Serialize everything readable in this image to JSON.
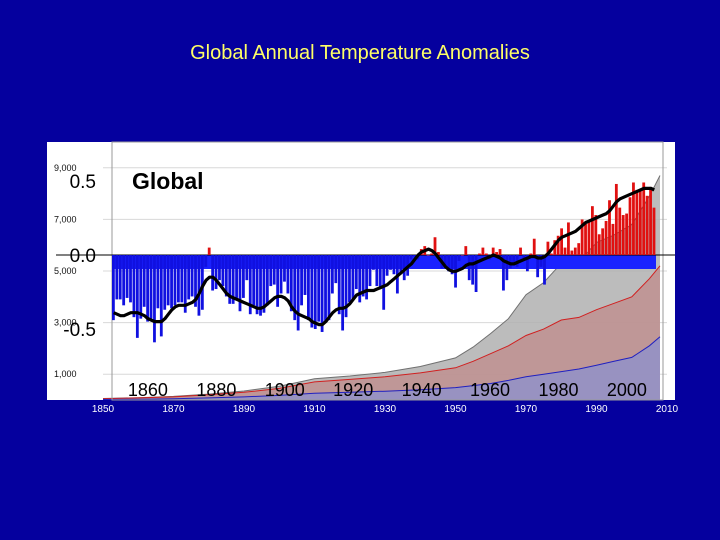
{
  "slide": {
    "title": "Global Annual Temperature Anomalies"
  },
  "chart_data": [
    {
      "type": "bar",
      "title": "Global",
      "overlay_line": "smoothed",
      "ytick_labels": [
        "0.5",
        "0.0",
        "-0.5"
      ],
      "ytick_values": [
        0.5,
        0.0,
        -0.5
      ],
      "xtick_labels": [
        "1860",
        "1880",
        "1900",
        "1920",
        "1940",
        "1960",
        "1980",
        "2000"
      ],
      "ylim": [
        -1.0,
        0.6
      ],
      "colors": {
        "positive": "#e01010",
        "negative": "#1010e0",
        "smooth_line": "#000000",
        "zero_band": "#1a22ff"
      },
      "years": [
        1850,
        1851,
        1852,
        1853,
        1854,
        1855,
        1856,
        1857,
        1858,
        1859,
        1860,
        1861,
        1862,
        1863,
        1864,
        1865,
        1866,
        1867,
        1868,
        1869,
        1870,
        1871,
        1872,
        1873,
        1874,
        1875,
        1876,
        1877,
        1878,
        1879,
        1880,
        1881,
        1882,
        1883,
        1884,
        1885,
        1886,
        1887,
        1888,
        1889,
        1890,
        1891,
        1892,
        1893,
        1894,
        1895,
        1896,
        1897,
        1898,
        1899,
        1900,
        1901,
        1902,
        1903,
        1904,
        1905,
        1906,
        1907,
        1908,
        1909,
        1910,
        1911,
        1912,
        1913,
        1914,
        1915,
        1916,
        1917,
        1918,
        1919,
        1920,
        1921,
        1922,
        1923,
        1924,
        1925,
        1926,
        1927,
        1928,
        1929,
        1930,
        1931,
        1932,
        1933,
        1934,
        1935,
        1936,
        1937,
        1938,
        1939,
        1940,
        1941,
        1942,
        1943,
        1944,
        1945,
        1946,
        1947,
        1948,
        1949,
        1950,
        1951,
        1952,
        1953,
        1954,
        1955,
        1956,
        1957,
        1958,
        1959,
        1960,
        1961,
        1962,
        1963,
        1964,
        1965,
        1966,
        1967,
        1968,
        1969,
        1970,
        1971,
        1972,
        1973,
        1974,
        1975,
        1976,
        1977,
        1978,
        1979,
        1980,
        1981,
        1982,
        1983,
        1984,
        1985,
        1986,
        1987,
        1988,
        1989,
        1990,
        1991,
        1992,
        1993,
        1994,
        1995,
        1996,
        1997,
        1998,
        1999,
        2000,
        2001,
        2002,
        2003,
        2004,
        2005,
        2006,
        2007,
        2008
      ],
      "anomalies": [
        -0.44,
        -0.3,
        -0.3,
        -0.34,
        -0.29,
        -0.32,
        -0.42,
        -0.56,
        -0.43,
        -0.35,
        -0.45,
        -0.43,
        -0.59,
        -0.36,
        -0.55,
        -0.37,
        -0.34,
        -0.36,
        -0.34,
        -0.32,
        -0.32,
        -0.39,
        -0.3,
        -0.28,
        -0.35,
        -0.41,
        -0.37,
        -0.08,
        0.05,
        -0.24,
        -0.23,
        -0.17,
        -0.21,
        -0.28,
        -0.33,
        -0.33,
        -0.29,
        -0.38,
        -0.29,
        -0.17,
        -0.4,
        -0.34,
        -0.4,
        -0.41,
        -0.39,
        -0.34,
        -0.21,
        -0.2,
        -0.35,
        -0.26,
        -0.18,
        -0.26,
        -0.38,
        -0.44,
        -0.51,
        -0.34,
        -0.27,
        -0.44,
        -0.49,
        -0.5,
        -0.45,
        -0.52,
        -0.45,
        -0.44,
        -0.26,
        -0.19,
        -0.4,
        -0.51,
        -0.42,
        -0.32,
        -0.3,
        -0.23,
        -0.32,
        -0.28,
        -0.3,
        -0.21,
        -0.1,
        -0.21,
        -0.22,
        -0.37,
        -0.14,
        -0.1,
        -0.13,
        -0.26,
        -0.13,
        -0.17,
        -0.14,
        -0.03,
        -0.01,
        -0.03,
        0.04,
        0.06,
        0.0,
        0.01,
        0.12,
        0.02,
        -0.09,
        -0.09,
        -0.11,
        -0.13,
        -0.22,
        -0.04,
        0.0,
        0.06,
        -0.17,
        -0.2,
        -0.25,
        0.01,
        0.05,
        0.01,
        -0.03,
        0.05,
        0.02,
        0.04,
        -0.24,
        -0.17,
        -0.09,
        -0.05,
        -0.08,
        0.05,
        -0.02,
        -0.11,
        0.01,
        0.11,
        -0.15,
        -0.08,
        -0.2,
        0.09,
        0.01,
        0.1,
        0.13,
        0.18,
        0.05,
        0.22,
        0.03,
        0.05,
        0.08,
        0.24,
        0.21,
        0.23,
        0.33,
        0.27,
        0.14,
        0.18,
        0.23,
        0.37,
        0.21,
        0.48,
        0.32,
        0.27,
        0.28,
        0.39,
        0.49,
        0.44,
        0.44,
        0.49,
        0.4,
        0.46,
        0.32
      ],
      "smoothed": [
        -0.39,
        -0.4,
        -0.41,
        -0.41,
        -0.4,
        -0.39,
        -0.39,
        -0.39,
        -0.4,
        -0.41,
        -0.43,
        -0.44,
        -0.45,
        -0.45,
        -0.45,
        -0.43,
        -0.4,
        -0.37,
        -0.35,
        -0.34,
        -0.34,
        -0.34,
        -0.33,
        -0.32,
        -0.3,
        -0.26,
        -0.21,
        -0.17,
        -0.15,
        -0.15,
        -0.17,
        -0.2,
        -0.23,
        -0.26,
        -0.28,
        -0.29,
        -0.3,
        -0.31,
        -0.32,
        -0.33,
        -0.34,
        -0.35,
        -0.36,
        -0.36,
        -0.35,
        -0.33,
        -0.31,
        -0.29,
        -0.28,
        -0.28,
        -0.29,
        -0.31,
        -0.35,
        -0.38,
        -0.4,
        -0.41,
        -0.42,
        -0.43,
        -0.45,
        -0.46,
        -0.47,
        -0.47,
        -0.45,
        -0.42,
        -0.39,
        -0.37,
        -0.36,
        -0.36,
        -0.35,
        -0.33,
        -0.3,
        -0.27,
        -0.26,
        -0.25,
        -0.24,
        -0.24,
        -0.24,
        -0.23,
        -0.22,
        -0.21,
        -0.2,
        -0.18,
        -0.16,
        -0.14,
        -0.12,
        -0.1,
        -0.08,
        -0.06,
        -0.03,
        0.0,
        0.02,
        0.03,
        0.04,
        0.03,
        0.01,
        -0.02,
        -0.05,
        -0.08,
        -0.1,
        -0.11,
        -0.11,
        -0.1,
        -0.09,
        -0.07,
        -0.06,
        -0.06,
        -0.05,
        -0.04,
        -0.03,
        -0.02,
        -0.01,
        0.0,
        -0.01,
        -0.02,
        -0.04,
        -0.05,
        -0.06,
        -0.06,
        -0.05,
        -0.04,
        -0.03,
        -0.02,
        -0.01,
        -0.01,
        -0.02,
        -0.02,
        -0.01,
        0.01,
        0.04,
        0.07,
        0.1,
        0.12,
        0.13,
        0.14,
        0.15,
        0.16,
        0.18,
        0.2,
        0.22,
        0.23,
        0.24,
        0.25,
        0.26,
        0.27,
        0.28,
        0.3,
        0.33,
        0.36,
        0.38,
        0.39,
        0.4,
        0.41,
        0.42,
        0.43,
        0.44,
        0.45,
        0.45,
        0.45,
        0.44
      ]
    },
    {
      "type": "area",
      "ytick_labels": [
        "9,000",
        "7,000",
        "5,000",
        "3,000",
        "1,000"
      ],
      "ytick_values": [
        9000,
        7000,
        5000,
        3000,
        1000
      ],
      "xtick_labels": [
        "1850",
        "1870",
        "1890",
        "1910",
        "1930",
        "1950",
        "1970",
        "1990",
        "2010"
      ],
      "xlim": [
        1850,
        2010
      ],
      "ylim": [
        0,
        10000
      ],
      "years": [
        1850,
        1860,
        1870,
        1880,
        1890,
        1900,
        1910,
        1920,
        1930,
        1940,
        1950,
        1955,
        1960,
        1965,
        1970,
        1975,
        1980,
        1985,
        1990,
        1995,
        2000,
        2005,
        2008
      ],
      "series": [
        {
          "color": "#b0b0b0",
          "values": [
            60,
            90,
            140,
            230,
            350,
            530,
            820,
            930,
            1070,
            1300,
            1630,
            2050,
            2580,
            3150,
            4080,
            4550,
            5300,
            5350,
            6100,
            6400,
            6800,
            7900,
            8700
          ]
        },
        {
          "color": "#c09090",
          "values": [
            50,
            80,
            120,
            200,
            300,
            450,
            700,
            800,
            900,
            1050,
            1250,
            1500,
            1800,
            2100,
            2500,
            2750,
            3100,
            3200,
            3500,
            3750,
            4000,
            4700,
            5200
          ]
        },
        {
          "color": "#9090c8",
          "values": [
            20,
            30,
            50,
            80,
            120,
            180,
            260,
            300,
            340,
            400,
            480,
            560,
            640,
            760,
            900,
            1000,
            1100,
            1200,
            1350,
            1500,
            1650,
            2100,
            2450
          ]
        }
      ]
    }
  ]
}
